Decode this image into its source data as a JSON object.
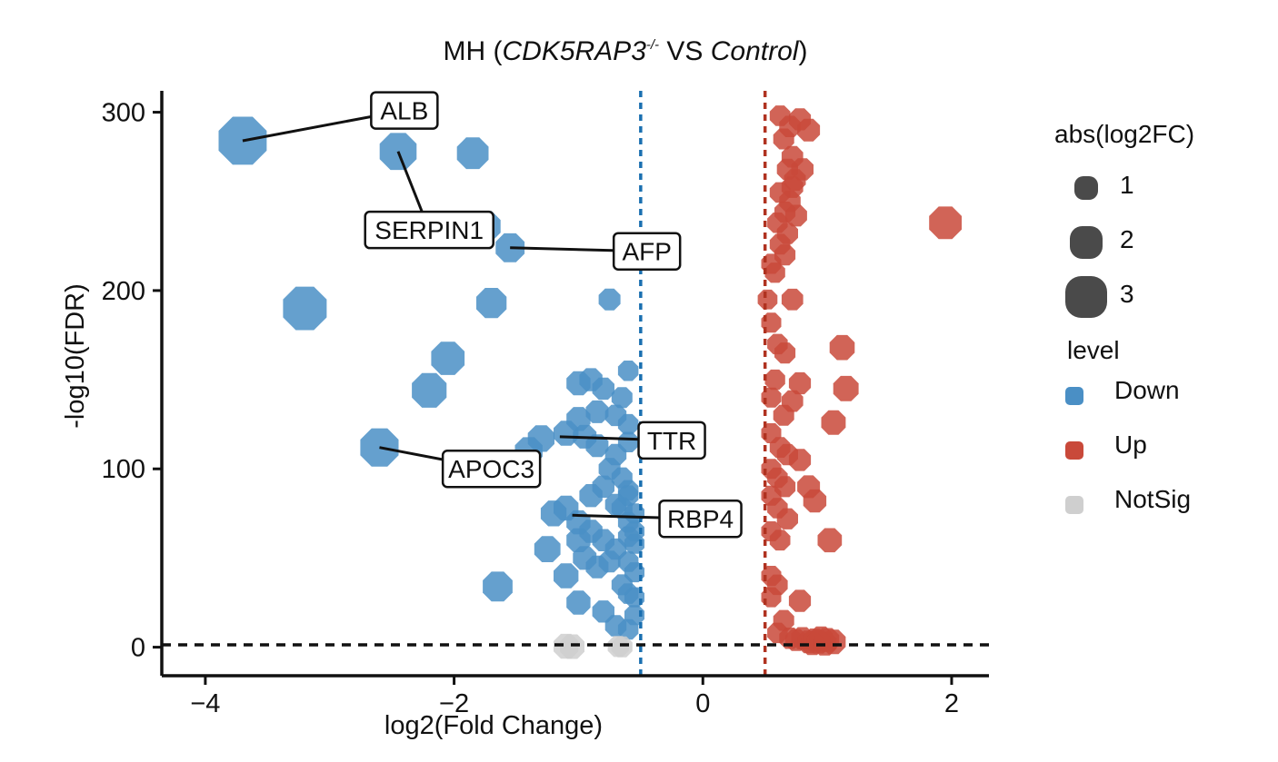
{
  "title": {
    "prefix": "MH (",
    "gene": "CDK5RAP3",
    "superscript": "-/-",
    "vs": " VS ",
    "control": "Control",
    "suffix": ")"
  },
  "chart_data": {
    "type": "scatter",
    "subtype": "volcano",
    "xlabel": "log2(Fold Change)",
    "ylabel": "-log10(FDR)",
    "xlim": [
      -4.35,
      2.3
    ],
    "ylim": [
      -16,
      312
    ],
    "xticks": [
      -4,
      -2,
      0,
      2
    ],
    "xtick_labels": [
      "−4",
      "−2",
      "0",
      "2"
    ],
    "yticks": [
      0,
      100,
      200,
      300
    ],
    "ytick_labels": [
      "0",
      "100",
      "200",
      "300"
    ],
    "grid": false,
    "thresholds": {
      "fc_low": -0.5,
      "fc_high": 0.5,
      "fdr": 1.3,
      "fc_low_color": "#1a6fb0",
      "fc_high_color": "#b03220",
      "fdr_color": "#111111"
    },
    "colors": {
      "Down": "#4a8fc5",
      "Up": "#c9493a",
      "NotSig": "#cfcfcf"
    },
    "legend": {
      "size_title": "abs(log2FC)",
      "size_entries": [
        "1",
        "2",
        "3"
      ],
      "color_title": "level",
      "color_entries": [
        "Down",
        "Up",
        "NotSig"
      ],
      "position": "right"
    },
    "series": [
      {
        "name": "Down",
        "points": [
          [
            -3.7,
            284
          ],
          [
            -2.45,
            278
          ],
          [
            -1.85,
            277
          ],
          [
            -1.75,
            236
          ],
          [
            -1.55,
            224
          ],
          [
            -3.2,
            190
          ],
          [
            -1.7,
            193
          ],
          [
            -0.75,
            195
          ],
          [
            -2.05,
            162
          ],
          [
            -2.2,
            144
          ],
          [
            -2.6,
            112
          ],
          [
            -1.3,
            117
          ],
          [
            -1.4,
            110
          ],
          [
            -1.1,
            120
          ],
          [
            -0.95,
            118
          ],
          [
            -0.85,
            113
          ],
          [
            -0.7,
            108
          ],
          [
            -0.6,
            115
          ],
          [
            -1.0,
            148
          ],
          [
            -0.9,
            150
          ],
          [
            -0.8,
            145
          ],
          [
            -0.65,
            140
          ],
          [
            -0.6,
            155
          ],
          [
            -0.7,
            130
          ],
          [
            -0.6,
            125
          ],
          [
            -1.0,
            128
          ],
          [
            -0.85,
            132
          ],
          [
            -0.75,
            100
          ],
          [
            -0.65,
            95
          ],
          [
            -0.6,
            85
          ],
          [
            -0.8,
            90
          ],
          [
            -0.9,
            85
          ],
          [
            -0.7,
            80
          ],
          [
            -1.1,
            78
          ],
          [
            -1.0,
            70
          ],
          [
            -0.9,
            65
          ],
          [
            -0.8,
            60
          ],
          [
            -0.7,
            55
          ],
          [
            -0.6,
            70
          ],
          [
            -0.55,
            65
          ],
          [
            -1.2,
            75
          ],
          [
            -1.25,
            55
          ],
          [
            -1.0,
            60
          ],
          [
            -0.95,
            50
          ],
          [
            -0.85,
            45
          ],
          [
            -0.75,
            48
          ],
          [
            -1.1,
            40
          ],
          [
            -0.65,
            35
          ],
          [
            -0.6,
            30
          ],
          [
            -1.65,
            34
          ],
          [
            -1.0,
            25
          ],
          [
            -0.8,
            20
          ],
          [
            -0.7,
            12
          ],
          [
            -0.6,
            10
          ],
          [
            -0.55,
            18
          ],
          [
            -0.55,
            42
          ],
          [
            -0.55,
            58
          ],
          [
            -0.6,
            62
          ],
          [
            -0.55,
            75
          ],
          [
            -0.6,
            88
          ],
          [
            -0.55,
            28
          ],
          [
            -0.6,
            48
          ],
          [
            -0.65,
            78
          ]
        ]
      },
      {
        "name": "Up",
        "points": [
          [
            0.62,
            298
          ],
          [
            0.7,
            292
          ],
          [
            0.78,
            296
          ],
          [
            0.85,
            290
          ],
          [
            0.65,
            285
          ],
          [
            0.72,
            275
          ],
          [
            0.68,
            268
          ],
          [
            0.74,
            262
          ],
          [
            0.62,
            255
          ],
          [
            0.7,
            250
          ],
          [
            0.66,
            244
          ],
          [
            0.6,
            238
          ],
          [
            0.75,
            242
          ],
          [
            0.68,
            232
          ],
          [
            0.62,
            226
          ],
          [
            0.66,
            220
          ],
          [
            0.58,
            210
          ],
          [
            0.55,
            215
          ],
          [
            0.8,
            268
          ],
          [
            0.72,
            258
          ],
          [
            1.95,
            238
          ],
          [
            0.52,
            195
          ],
          [
            0.72,
            195
          ],
          [
            0.55,
            182
          ],
          [
            0.6,
            170
          ],
          [
            0.66,
            165
          ],
          [
            0.58,
            150
          ],
          [
            0.55,
            140
          ],
          [
            0.72,
            138
          ],
          [
            0.78,
            148
          ],
          [
            0.65,
            130
          ],
          [
            0.55,
            120
          ],
          [
            1.12,
            168
          ],
          [
            1.15,
            145
          ],
          [
            1.05,
            126
          ],
          [
            0.62,
            112
          ],
          [
            0.68,
            108
          ],
          [
            0.55,
            100
          ],
          [
            0.6,
            95
          ],
          [
            0.66,
            90
          ],
          [
            0.55,
            85
          ],
          [
            0.6,
            78
          ],
          [
            0.68,
            72
          ],
          [
            0.55,
            65
          ],
          [
            0.62,
            60
          ],
          [
            0.85,
            90
          ],
          [
            0.9,
            82
          ],
          [
            0.78,
            105
          ],
          [
            1.02,
            60
          ],
          [
            0.55,
            40
          ],
          [
            0.6,
            35
          ],
          [
            0.55,
            28
          ],
          [
            0.78,
            26
          ],
          [
            0.65,
            15
          ],
          [
            0.6,
            8
          ],
          [
            0.7,
            5
          ],
          [
            0.75,
            4
          ],
          [
            0.8,
            5
          ],
          [
            0.85,
            3
          ],
          [
            0.9,
            4
          ],
          [
            0.95,
            5
          ],
          [
            1.0,
            4
          ],
          [
            1.05,
            3
          ],
          [
            0.88,
            2
          ],
          [
            0.93,
            3
          ],
          [
            0.98,
            2
          ]
        ]
      },
      {
        "name": "NotSig",
        "points": [
          [
            -1.1,
            0.5
          ],
          [
            -1.05,
            0.3
          ],
          [
            -0.68,
            0.4
          ],
          [
            -0.65,
            0.2
          ]
        ]
      }
    ],
    "labels": [
      {
        "text": "ALB",
        "x": -3.7,
        "y": 284,
        "label_x": -2.4,
        "label_y": 301
      },
      {
        "text": "SERPIN1",
        "x": -2.45,
        "y": 278,
        "label_x": -2.2,
        "label_y": 234
      },
      {
        "text": "AFP",
        "x": -1.55,
        "y": 224,
        "label_x": -0.45,
        "label_y": 222
      },
      {
        "text": "TTR",
        "x": -1.15,
        "y": 118,
        "label_x": -0.25,
        "label_y": 116
      },
      {
        "text": "APOC3",
        "x": -2.6,
        "y": 112,
        "label_x": -1.7,
        "label_y": 100
      },
      {
        "text": "RBP4",
        "x": -1.05,
        "y": 74,
        "label_x": -0.02,
        "label_y": 72
      }
    ]
  }
}
